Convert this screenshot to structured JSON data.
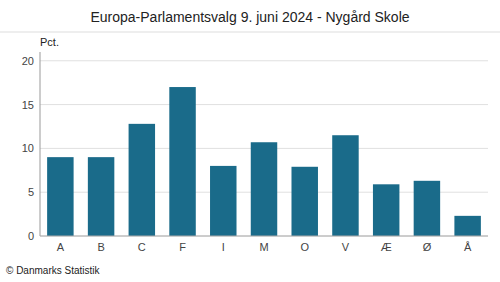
{
  "chart_data": {
    "type": "bar",
    "title": "Europa-Parlamentsvalg 9. juni 2024 - Nygård Skole",
    "categories": [
      "A",
      "B",
      "C",
      "F",
      "I",
      "M",
      "O",
      "V",
      "Æ",
      "Ø",
      "Å"
    ],
    "values": [
      9.0,
      9.0,
      12.8,
      17.0,
      8.0,
      10.7,
      7.9,
      11.5,
      5.9,
      6.3,
      2.3
    ],
    "color": "#1a6b8a",
    "ylabel": "Pct.",
    "ylim": [
      0,
      21
    ],
    "yticks": [
      0,
      5,
      10,
      15,
      20
    ],
    "grid": true,
    "footer": "© Danmarks Statistik"
  }
}
